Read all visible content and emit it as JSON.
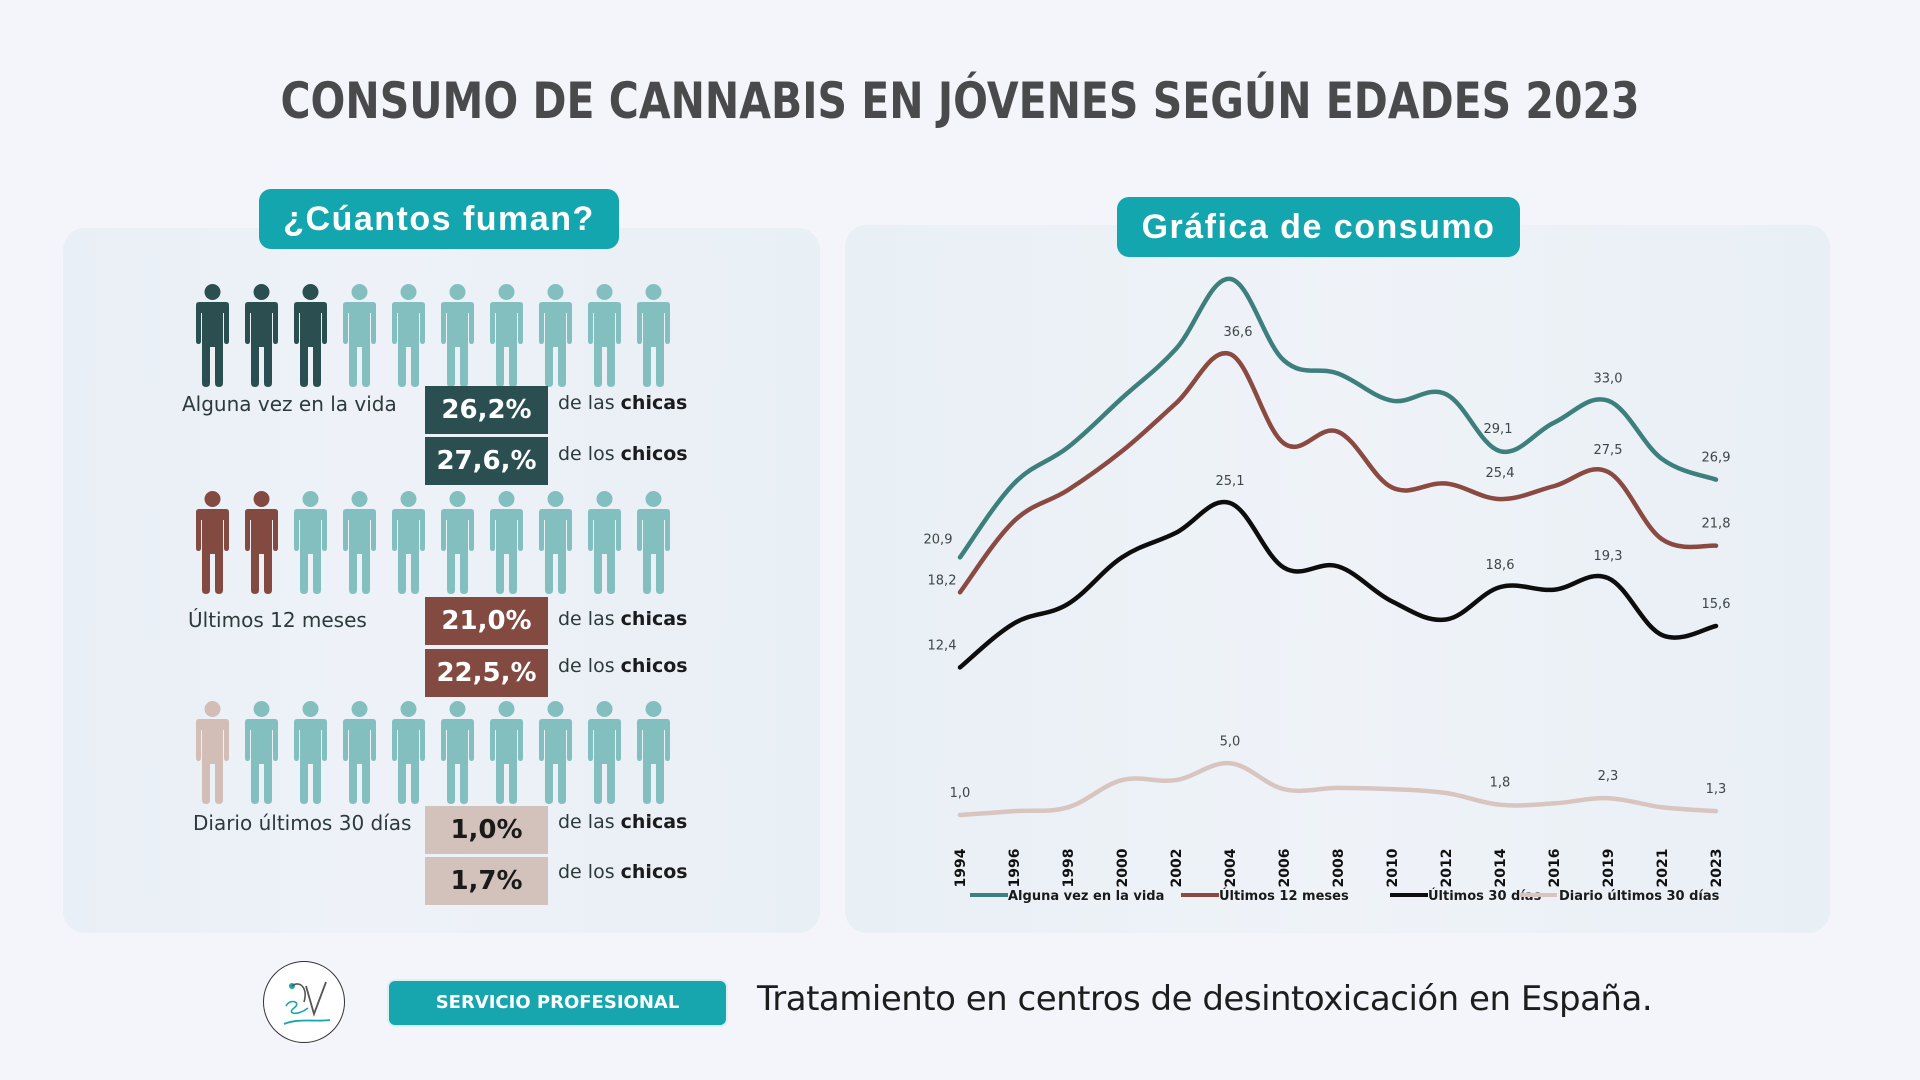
{
  "title": "CONSUMO DE CANNABIS EN JÓVENES SEGÚN EDADES 2023",
  "left_panel": {
    "heading": "¿Cúantos fuman?",
    "colors": {
      "inactive": "#84bfc0"
    },
    "groups": [
      {
        "label": "Alguna vez en la vida",
        "highlighted_people": 3,
        "total_people": 10,
        "highlight_color": "#2b4f50",
        "box_color": "#2b4f50",
        "box_text_color": "#ffffff",
        "girls_value": "26,2%",
        "boys_value": "27,6,%",
        "girls_prefix": "de las",
        "girls_word": "chicas",
        "boys_prefix": "de los",
        "boys_word": "chicos"
      },
      {
        "label": "Últimos 12 meses",
        "highlighted_people": 2,
        "total_people": 10,
        "highlight_color": "#834a42",
        "box_color": "#834a42",
        "box_text_color": "#ffffff",
        "girls_value": "21,0%",
        "boys_value": "22,5,%",
        "girls_prefix": "de las",
        "girls_word": "chicas",
        "boys_prefix": "de los",
        "boys_word": "chicos"
      },
      {
        "label": "Diario últimos 30 días",
        "highlighted_people": 1,
        "total_people": 10,
        "highlight_color": "#d3bdb7",
        "box_color": "#d3c2bc",
        "box_text_color": "#1a1a1a",
        "girls_value": "1,0%",
        "boys_value": "1,7%",
        "girls_prefix": "de las",
        "girls_word": "chicas",
        "boys_prefix": "de los",
        "boys_word": "chicos"
      }
    ]
  },
  "right_panel": {
    "heading": "Gráfica de consumo"
  },
  "chart_data": {
    "type": "line",
    "title": "Gráfica de consumo",
    "xlabel": "",
    "ylabel": "",
    "x": [
      "1994",
      "1996",
      "1998",
      "2000",
      "2002",
      "2004",
      "2006",
      "2008",
      "2010",
      "2012",
      "2014",
      "2016",
      "2019",
      "2021",
      "2023"
    ],
    "ylim": [
      0,
      45
    ],
    "grid": false,
    "legend_position": "bottom",
    "series": [
      {
        "name": "Alguna vez en la vida",
        "color": "#3d7f7c",
        "values": [
          20.9,
          26.6,
          29.4,
          33.2,
          37.0,
          42.4,
          36.1,
          35.1,
          33.0,
          33.5,
          29.1,
          31.3,
          33.0,
          28.5,
          26.9
        ],
        "labels": [
          {
            "x": "1994",
            "text": "20,9"
          },
          {
            "x": "2014",
            "text": "29,1"
          },
          {
            "x": "2019",
            "text": "33,0"
          },
          {
            "x": "2023",
            "text": "26,9"
          }
        ]
      },
      {
        "name": "Últimos 12 meses",
        "color": "#8a4a42",
        "values": [
          18.2,
          23.7,
          26.1,
          29.1,
          32.8,
          36.6,
          29.7,
          30.6,
          26.3,
          26.6,
          25.4,
          26.4,
          27.5,
          22.3,
          21.8
        ],
        "labels": [
          {
            "x": "1994",
            "text": "18,2"
          },
          {
            "x": "2004",
            "text": "36,6"
          },
          {
            "x": "2014",
            "text": "25,4"
          },
          {
            "x": "2019",
            "text": "27,5"
          },
          {
            "x": "2023",
            "text": "21,8"
          }
        ]
      },
      {
        "name": "Últimos 30 días",
        "color": "#0d0d0d",
        "values": [
          12.4,
          15.8,
          17.3,
          20.9,
          22.8,
          25.1,
          20.1,
          20.2,
          17.5,
          16.1,
          18.6,
          18.4,
          19.3,
          14.9,
          15.6
        ],
        "labels": [
          {
            "x": "1994",
            "text": "12,4"
          },
          {
            "x": "2004",
            "text": "25,1"
          },
          {
            "x": "2014",
            "text": "18,6"
          },
          {
            "x": "2019",
            "text": "19,3"
          },
          {
            "x": "2023",
            "text": "15,6"
          }
        ]
      },
      {
        "name": "Diario últimos 30 días",
        "color": "#d8c5c0",
        "values": [
          1.0,
          1.3,
          1.6,
          3.7,
          3.7,
          5.0,
          3.0,
          3.1,
          3.0,
          2.7,
          1.8,
          1.9,
          2.3,
          1.6,
          1.3
        ],
        "labels": [
          {
            "x": "1994",
            "text": "1,0"
          },
          {
            "x": "2004",
            "text": "5,0"
          },
          {
            "x": "2014",
            "text": "1,8"
          },
          {
            "x": "2019",
            "text": "2,3"
          },
          {
            "x": "2023",
            "text": "1,3"
          }
        ]
      }
    ]
  },
  "footer": {
    "logo_icon": "brand-logo-icon",
    "button_label": "SERVICIO PROFESIONAL",
    "text": "Tratamiento en centros de desintoxicación en España."
  }
}
